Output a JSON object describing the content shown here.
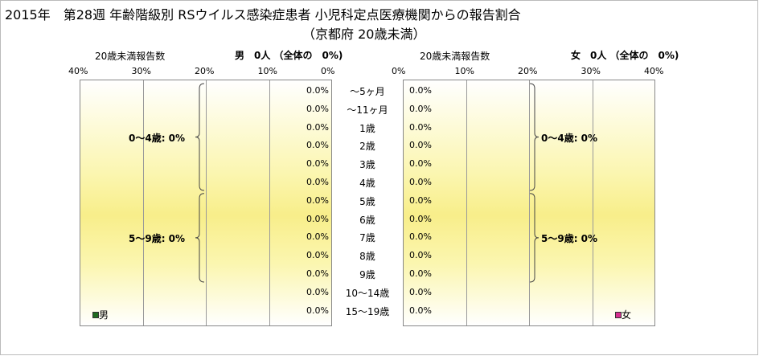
{
  "title": "2015年　第28週 年齢階級別 RSウイルス感染症患者 小児科定点医療機関からの報告割合",
  "subtitle": "（京都府 20歳未満）",
  "chart_data": {
    "type": "bar",
    "categories": [
      "～5ヶ月",
      "～11ヶ月",
      "1歳",
      "2歳",
      "3歳",
      "4歳",
      "5歳",
      "6歳",
      "7歳",
      "8歳",
      "9歳",
      "10～14歳",
      "15～19歳"
    ],
    "xlim": [
      0,
      40
    ],
    "panels": [
      {
        "side": "left",
        "axis_label": "20歳未満報告数",
        "header": "男　0人 （全体の　0%)",
        "ticks": [
          "40%",
          "30%",
          "20%",
          "10%",
          "0%"
        ],
        "values": [
          0,
          0,
          0,
          0,
          0,
          0,
          0,
          0,
          0,
          0,
          0,
          0,
          0
        ],
        "value_labels": [
          "0.0%",
          "0.0%",
          "0.0%",
          "0.0%",
          "0.0%",
          "0.0%",
          "0.0%",
          "0.0%",
          "0.0%",
          "0.0%",
          "0.0%",
          "0.0%",
          "0.0%"
        ],
        "groups": [
          "0～4歳: 0%",
          "5～9歳: 0%"
        ],
        "legend": "男",
        "color": "#1f6b1f"
      },
      {
        "side": "right",
        "axis_label": "20歳未満報告数",
        "header": "女　0人 （全体の　0%)",
        "ticks": [
          "0%",
          "10%",
          "20%",
          "30%",
          "40%"
        ],
        "values": [
          0,
          0,
          0,
          0,
          0,
          0,
          0,
          0,
          0,
          0,
          0,
          0,
          0
        ],
        "value_labels": [
          "0.0%",
          "0.0%",
          "0.0%",
          "0.0%",
          "0.0%",
          "0.0%",
          "0.0%",
          "0.0%",
          "0.0%",
          "0.0%",
          "0.0%",
          "0.0%",
          "0.0%"
        ],
        "groups": [
          "0～4歳: 0%",
          "5～9歳: 0%"
        ],
        "legend": "女",
        "color": "#d62e8f"
      }
    ]
  }
}
